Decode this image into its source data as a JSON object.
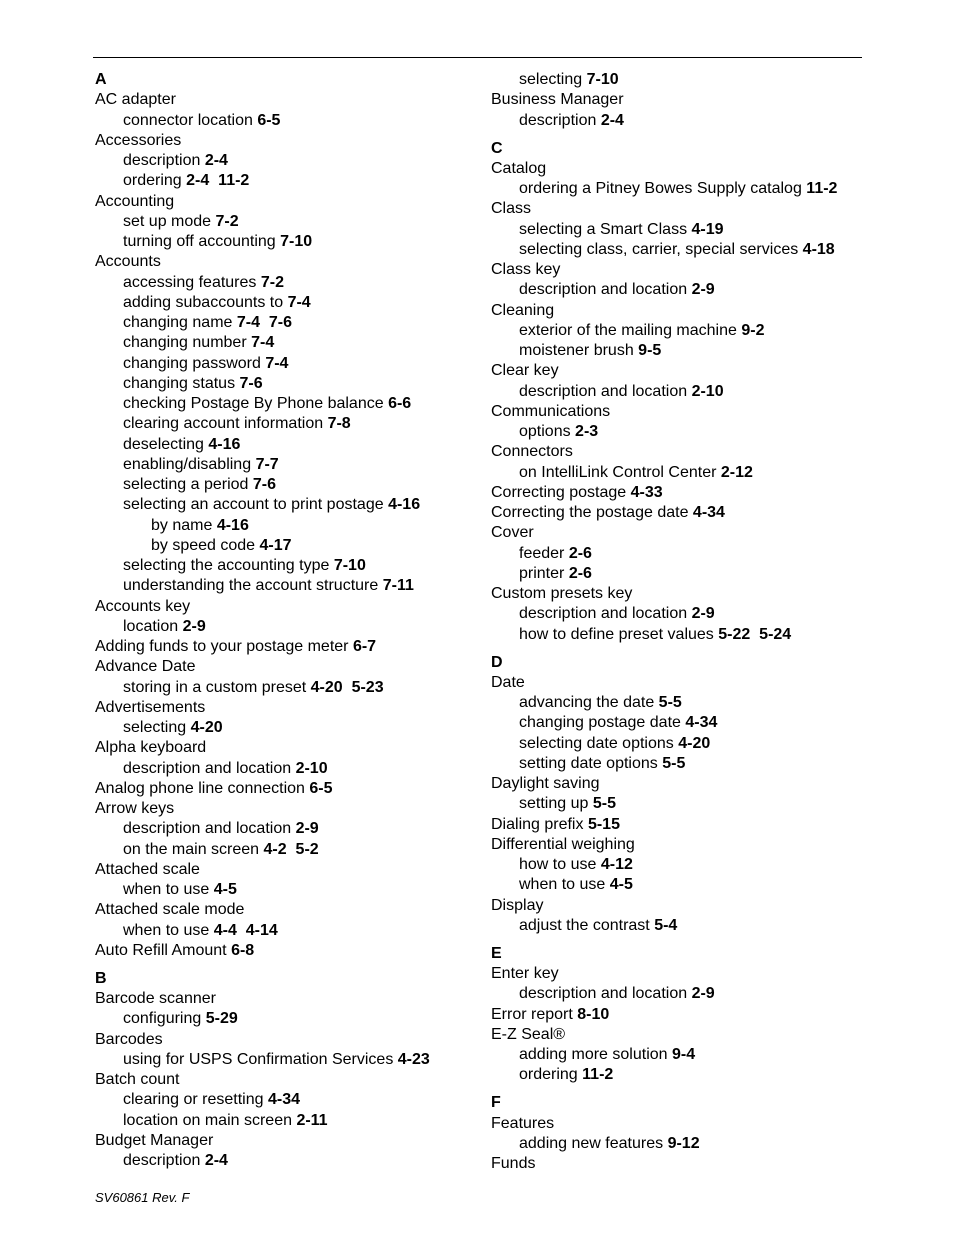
{
  "footer": "SV60861 Rev. F",
  "columns": [
    [
      [
        0,
        "A",
        ""
      ],
      [
        1,
        "AC adapter",
        ""
      ],
      [
        2,
        "connector location",
        "6-5"
      ],
      [
        1,
        "Accessories",
        ""
      ],
      [
        2,
        "description",
        "2-4"
      ],
      [
        2,
        "ordering",
        "2-4  11-2"
      ],
      [
        1,
        "Accounting",
        ""
      ],
      [
        2,
        "set up mode",
        "7-2"
      ],
      [
        2,
        "turning off accounting",
        "7-10"
      ],
      [
        1,
        "Accounts",
        ""
      ],
      [
        2,
        "accessing features",
        "7-2"
      ],
      [
        2,
        "adding subaccounts to",
        "7-4"
      ],
      [
        2,
        "changing name",
        "7-4  7-6"
      ],
      [
        2,
        "changing number",
        "7-4"
      ],
      [
        2,
        "changing password",
        "7-4"
      ],
      [
        2,
        "changing status",
        "7-6"
      ],
      [
        2,
        "checking Postage By Phone balance",
        "6-6"
      ],
      [
        2,
        "clearing account information",
        "7-8"
      ],
      [
        2,
        "deselecting",
        "4-16"
      ],
      [
        2,
        "enabling/disabling",
        "7-7"
      ],
      [
        2,
        "selecting a period",
        "7-6"
      ],
      [
        2,
        "selecting an account to print postage",
        "4-16"
      ],
      [
        3,
        "by name",
        "4-16"
      ],
      [
        3,
        "by speed code",
        "4-17"
      ],
      [
        2,
        "selecting the accounting type",
        "7-10"
      ],
      [
        2,
        "understanding the account structure",
        "7-11"
      ],
      [
        1,
        "Accounts key",
        ""
      ],
      [
        2,
        "location",
        "2-9"
      ],
      [
        1,
        "Adding funds to your postage meter",
        "6-7"
      ],
      [
        1,
        "Advance Date",
        ""
      ],
      [
        2,
        "storing in a custom preset",
        "4-20  5-23"
      ],
      [
        1,
        "Advertisements",
        ""
      ],
      [
        2,
        "selecting",
        "4-20"
      ],
      [
        1,
        "Alpha keyboard",
        ""
      ],
      [
        2,
        "description and location",
        "2-10"
      ],
      [
        1,
        "Analog phone line connection",
        "6-5"
      ],
      [
        1,
        "Arrow keys",
        ""
      ],
      [
        2,
        "description and location",
        "2-9"
      ],
      [
        2,
        "on the main screen",
        "4-2  5-2"
      ],
      [
        1,
        "Attached scale",
        ""
      ],
      [
        2,
        "when to use",
        "4-5"
      ],
      [
        1,
        "Attached scale mode",
        ""
      ],
      [
        2,
        "when to use",
        "4-4  4-14"
      ],
      [
        1,
        "Auto Refill Amount",
        "6-8"
      ],
      [
        0,
        "B",
        ""
      ],
      [
        1,
        "Barcode scanner",
        ""
      ],
      [
        2,
        "configuring",
        "5-29"
      ],
      [
        1,
        "Barcodes",
        ""
      ],
      [
        2,
        "using for USPS Confirmation Services",
        "4-23"
      ],
      [
        1,
        "Batch count",
        ""
      ],
      [
        2,
        "clearing or resetting",
        "4-34"
      ],
      [
        2,
        "location on main screen",
        "2-11"
      ],
      [
        1,
        "Budget Manager",
        ""
      ],
      [
        2,
        "description",
        "2-4"
      ]
    ],
    [
      [
        2,
        "selecting",
        "7-10"
      ],
      [
        1,
        "Business Manager",
        ""
      ],
      [
        2,
        "description",
        "2-4"
      ],
      [
        0,
        "C",
        ""
      ],
      [
        1,
        "Catalog",
        ""
      ],
      [
        2,
        "ordering a Pitney Bowes Supply catalog",
        "11-2"
      ],
      [
        1,
        "Class",
        ""
      ],
      [
        2,
        "selecting a Smart Class",
        "4-19"
      ],
      [
        2,
        "selecting class, carrier, special services",
        "4-18"
      ],
      [
        1,
        "Class key",
        ""
      ],
      [
        2,
        "description and location",
        "2-9"
      ],
      [
        1,
        "Cleaning",
        ""
      ],
      [
        2,
        "exterior of the mailing machine",
        "9-2"
      ],
      [
        2,
        "moistener brush",
        "9-5"
      ],
      [
        1,
        "Clear key",
        ""
      ],
      [
        2,
        "description and location",
        "2-10"
      ],
      [
        1,
        "Communications",
        ""
      ],
      [
        2,
        "options",
        "2-3"
      ],
      [
        1,
        "Connectors",
        ""
      ],
      [
        2,
        "on IntelliLink Control Center",
        "2-12"
      ],
      [
        1,
        "Correcting postage",
        "4-33"
      ],
      [
        1,
        "Correcting the postage date",
        "4-34"
      ],
      [
        1,
        "Cover",
        ""
      ],
      [
        2,
        "feeder",
        "2-6"
      ],
      [
        2,
        "printer",
        "2-6"
      ],
      [
        1,
        "Custom presets key",
        ""
      ],
      [
        2,
        "description and location",
        "2-9"
      ],
      [
        2,
        "how to define preset values",
        "5-22  5-24"
      ],
      [
        0,
        "D",
        ""
      ],
      [
        1,
        "Date",
        ""
      ],
      [
        2,
        "advancing the date",
        "5-5"
      ],
      [
        2,
        "changing postage date",
        "4-34"
      ],
      [
        2,
        "selecting date options",
        "4-20"
      ],
      [
        2,
        "setting date options",
        "5-5"
      ],
      [
        1,
        "Daylight saving",
        ""
      ],
      [
        2,
        "setting up",
        "5-5"
      ],
      [
        1,
        "Dialing prefix",
        "5-15"
      ],
      [
        1,
        "Differential weighing",
        ""
      ],
      [
        2,
        "how to use",
        "4-12"
      ],
      [
        2,
        "when to use",
        "4-5"
      ],
      [
        1,
        "Display",
        ""
      ],
      [
        2,
        "adjust the contrast",
        "5-4"
      ],
      [
        0,
        "E",
        ""
      ],
      [
        1,
        "Enter key",
        ""
      ],
      [
        2,
        "description and location",
        "2-9"
      ],
      [
        1,
        "Error report",
        "8-10"
      ],
      [
        1,
        "E-Z Seal®",
        ""
      ],
      [
        2,
        "adding more solution",
        "9-4"
      ],
      [
        2,
        "ordering",
        "11-2"
      ],
      [
        0,
        "F",
        ""
      ],
      [
        1,
        "Features",
        ""
      ],
      [
        2,
        "adding new features",
        "9-12"
      ],
      [
        1,
        "Funds",
        ""
      ]
    ]
  ]
}
